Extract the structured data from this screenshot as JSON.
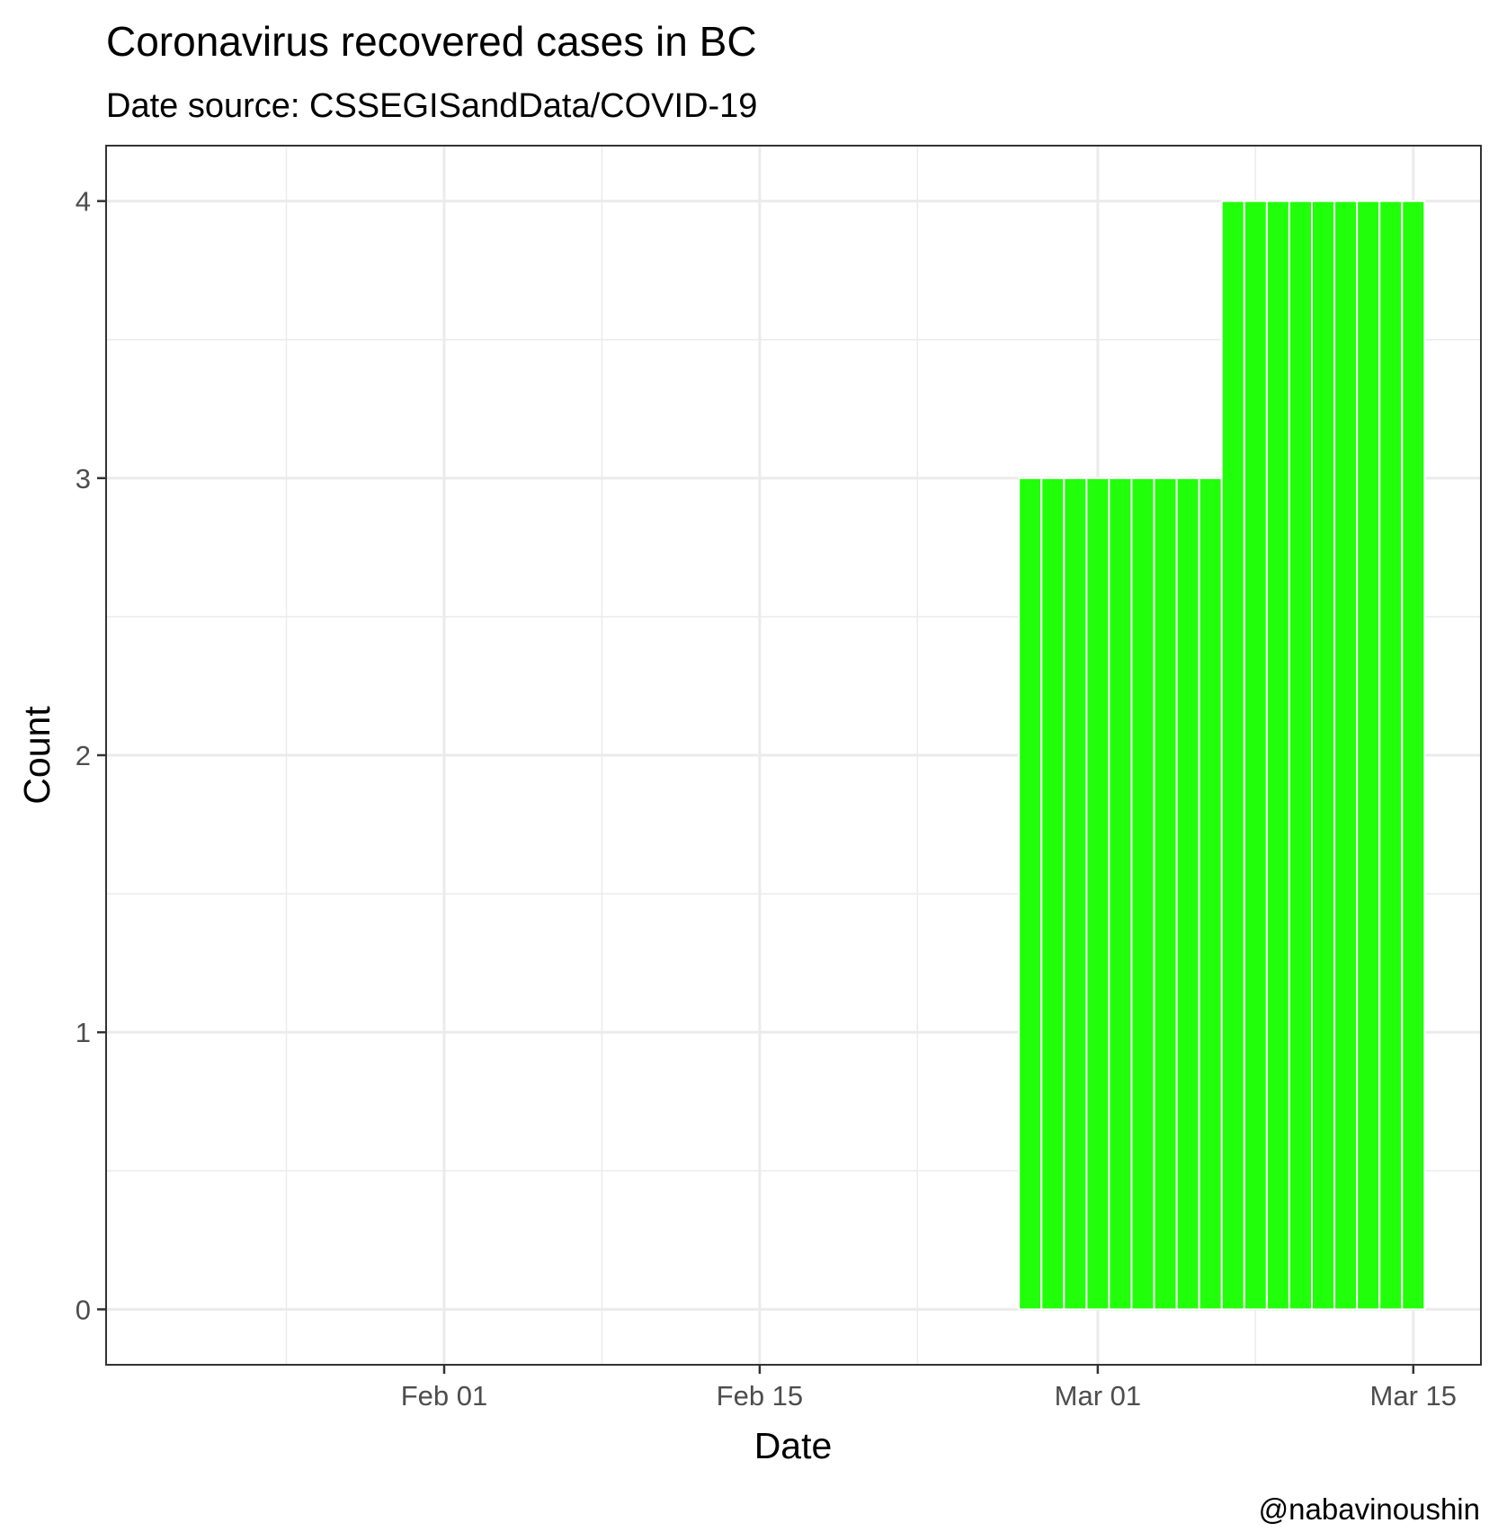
{
  "chart_data": {
    "type": "bar",
    "title": "Coronavirus recovered cases in BC",
    "subtitle": "Date source: CSSEGISandData/COVID-19",
    "xlabel": "Date",
    "ylabel": "Count",
    "caption": "@nabavinoushin",
    "x": [
      "2020-02-27",
      "2020-02-28",
      "2020-02-29",
      "2020-03-01",
      "2020-03-02",
      "2020-03-03",
      "2020-03-04",
      "2020-03-05",
      "2020-03-06",
      "2020-03-07",
      "2020-03-08",
      "2020-03-09",
      "2020-03-10",
      "2020-03-11",
      "2020-03-12",
      "2020-03-13",
      "2020-03-14",
      "2020-03-15"
    ],
    "values": [
      3,
      3,
      3,
      3,
      3,
      3,
      3,
      3,
      3,
      4,
      4,
      4,
      4,
      4,
      4,
      4,
      4,
      4
    ],
    "xlim": [
      "2020-01-17",
      "2020-03-18"
    ],
    "ylim": [
      -0.2,
      4.2
    ],
    "x_ticks": [
      {
        "date": "2020-02-01",
        "label": "Feb 01"
      },
      {
        "date": "2020-02-15",
        "label": "Feb 15"
      },
      {
        "date": "2020-03-01",
        "label": "Mar 01"
      },
      {
        "date": "2020-03-15",
        "label": "Mar 15"
      }
    ],
    "x_minor": [
      "2020-01-25",
      "2020-02-08",
      "2020-02-22",
      "2020-03-08"
    ],
    "y_ticks": [
      0,
      1,
      2,
      3,
      4
    ],
    "y_minor": [
      0.5,
      1.5,
      2.5,
      3.5
    ],
    "bar_color": "#22ff0a",
    "grid": true,
    "legend": "none"
  }
}
